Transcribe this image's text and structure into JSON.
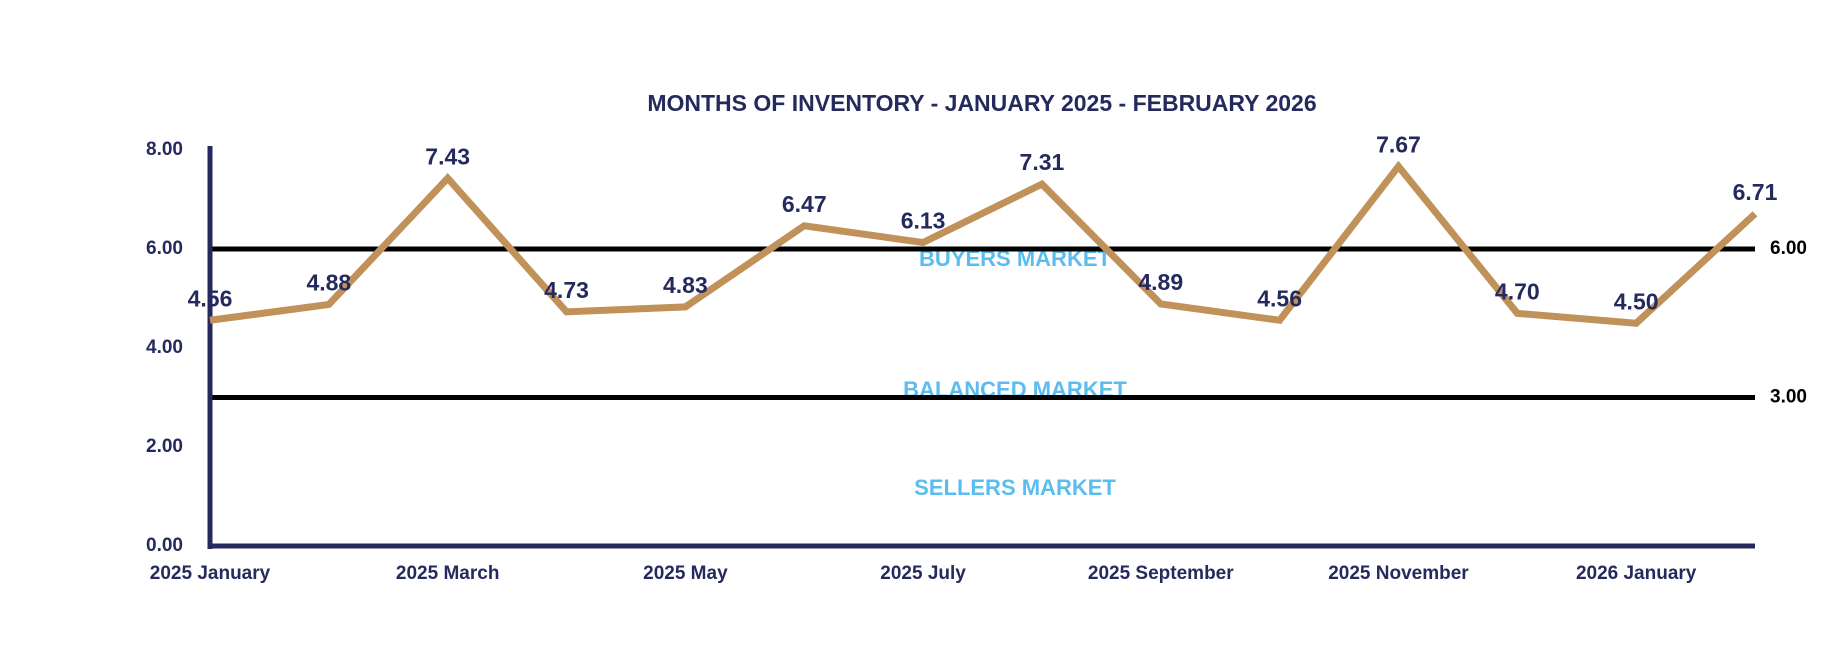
{
  "chart_data": {
    "type": "line",
    "title": "MONTHS OF INVENTORY - JANUARY 2025 - FEBRUARY 2026",
    "categories": [
      "2025 January",
      null,
      "2025 March",
      null,
      "2025 May",
      null,
      "2025 July",
      null,
      "2025 September",
      null,
      "2025 November",
      null,
      "2026 January",
      null
    ],
    "series": [
      {
        "name": "Months of Inventory",
        "color": "#c09159",
        "values": [
          4.56,
          4.88,
          7.43,
          4.73,
          4.83,
          6.47,
          6.13,
          7.31,
          4.89,
          4.56,
          7.67,
          4.7,
          4.5,
          6.71
        ],
        "value_labels": [
          "4.56",
          "4.88",
          "7.43",
          "4.73",
          "4.83",
          "6.47",
          "6.13",
          "7.31",
          "4.89",
          "4.56",
          "7.67",
          "4.70",
          "4.50",
          "6.71"
        ]
      }
    ],
    "ylim": [
      0,
      8
    ],
    "yticks": [
      {
        "value": 0,
        "label": "0.00"
      },
      {
        "value": 2,
        "label": "2.00"
      },
      {
        "value": 4,
        "label": "4.00"
      },
      {
        "value": 6,
        "label": "6.00"
      },
      {
        "value": 8,
        "label": "8.00"
      }
    ],
    "reference_lines": [
      {
        "value": 6,
        "label": "6.00"
      },
      {
        "value": 3,
        "label": "3.00"
      }
    ],
    "annotations": [
      "BUYERS MARKET",
      "BALANCED MARKET",
      "SELLERS MARKET"
    ],
    "grid": false
  }
}
